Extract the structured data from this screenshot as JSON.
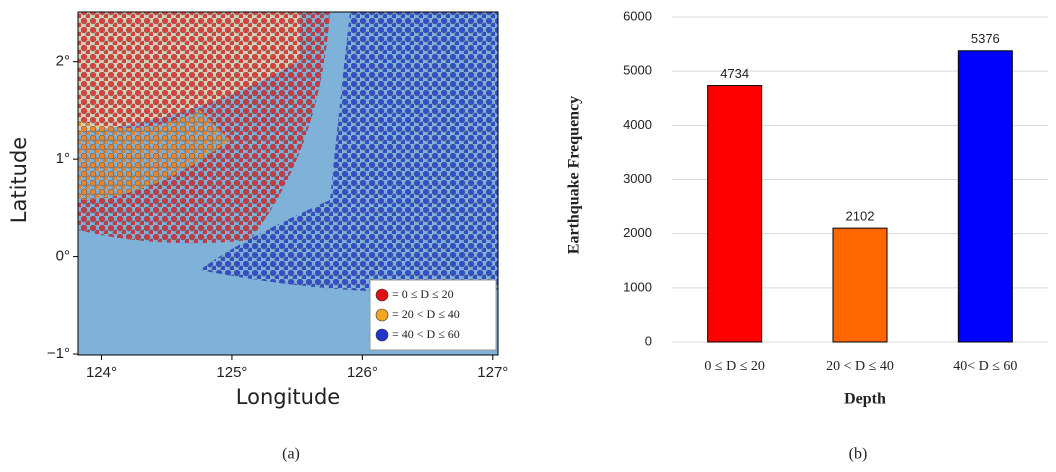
{
  "chart_data": [
    {
      "type": "map",
      "caption": "(a)",
      "xlabel": "Longitude",
      "ylabel": "Latitude",
      "xlim": [
        123.82,
        127.04
      ],
      "ylim": [
        -1.01,
        2.51
      ],
      "xticks": [
        {
          "value": 124,
          "label": "124°"
        },
        {
          "value": 125,
          "label": "125°"
        },
        {
          "value": 126,
          "label": "126°"
        },
        {
          "value": 127,
          "label": "127°"
        }
      ],
      "yticks": [
        {
          "value": -1,
          "label": "−1°"
        },
        {
          "value": 0,
          "label": "0°"
        },
        {
          "value": 1,
          "label": "1°"
        },
        {
          "value": 2,
          "label": "2°"
        }
      ],
      "series": [
        {
          "name": "= 0 ≤ D ≤ 20",
          "color": "#e01010"
        },
        {
          "name": "= 20 < D ≤ 40",
          "color": "#f5a623"
        },
        {
          "name": "= 40 < D ≤ 60",
          "color": "#2233cc"
        }
      ]
    },
    {
      "type": "bar",
      "caption": "(b)",
      "xlabel": "Depth",
      "ylabel": "Earthquake Frequency",
      "categories": [
        "0 ≤ D ≤ 20",
        "20 < D ≤ 40",
        "40< D ≤ 60"
      ],
      "values": [
        4734,
        2102,
        5376
      ],
      "colors": [
        "#ff0000",
        "#ff6600",
        "#0000ff"
      ],
      "ylim": [
        0,
        6000
      ],
      "yticks": [
        0,
        1000,
        2000,
        3000,
        4000,
        5000,
        6000
      ],
      "grid": true
    }
  ]
}
